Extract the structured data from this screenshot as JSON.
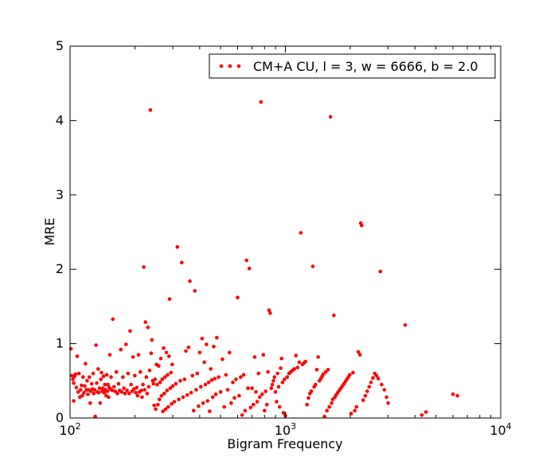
{
  "chart_data": {
    "type": "scatter",
    "xlabel": "Bigram Frequency",
    "ylabel": "MRE",
    "xscale": "log",
    "xlim": [
      100,
      10000
    ],
    "ylim": [
      0,
      5
    ],
    "xticks": [
      {
        "value": 100,
        "base": "10",
        "exp": "2"
      },
      {
        "value": 1000,
        "base": "10",
        "exp": "3"
      },
      {
        "value": 10000,
        "base": "10",
        "exp": "4"
      }
    ],
    "yticks": [
      0,
      1,
      2,
      3,
      4,
      5
    ],
    "grid": false,
    "legend_position": "top-right",
    "series": [
      {
        "name": "CM+A CU, l = 3, w = 6666, b = 2.0",
        "color": "#ff0000",
        "points": [
          [
            101,
            0.93
          ],
          [
            102,
            0.57
          ],
          [
            103,
            0.52
          ],
          [
            104,
            0.47
          ],
          [
            104,
            0.23
          ],
          [
            105,
            0.56
          ],
          [
            106,
            0.59
          ],
          [
            107,
            0.41
          ],
          [
            108,
            0.83
          ],
          [
            109,
            0.35
          ],
          [
            110,
            0.6
          ],
          [
            111,
            0.28
          ],
          [
            112,
            0.38
          ],
          [
            113,
            0.44
          ],
          [
            114,
            0.3
          ],
          [
            115,
            0.55
          ],
          [
            116,
            0.34
          ],
          [
            117,
            0.43
          ],
          [
            118,
            0.73
          ],
          [
            119,
            0.38
          ],
          [
            120,
            0.5
          ],
          [
            121,
            0.32
          ],
          [
            122,
            0.38
          ],
          [
            123,
            0.55
          ],
          [
            124,
            0.2
          ],
          [
            125,
            0.36
          ],
          [
            126,
            0.46
          ],
          [
            127,
            0.39
          ],
          [
            128,
            0.6
          ],
          [
            129,
            0.33
          ],
          [
            130,
            0.38
          ],
          [
            131,
            0.02
          ],
          [
            132,
            0.98
          ],
          [
            133,
            0.47
          ],
          [
            134,
            0.35
          ],
          [
            135,
            0.66
          ],
          [
            136,
            0.34
          ],
          [
            137,
            0.4
          ],
          [
            138,
            0.2
          ],
          [
            139,
            0.52
          ],
          [
            140,
            0.61
          ],
          [
            141,
            0.36
          ],
          [
            142,
            0.4
          ],
          [
            143,
            0.56
          ],
          [
            144,
            0.34
          ],
          [
            145,
            0.45
          ],
          [
            146,
            0.38
          ],
          [
            147,
            0.3
          ],
          [
            148,
            0.58
          ],
          [
            149,
            0.36
          ],
          [
            150,
            0.45
          ],
          [
            151,
            0.28
          ],
          [
            152,
            0.41
          ],
          [
            153,
            0.85
          ],
          [
            154,
            0.39
          ],
          [
            155,
            0.55
          ],
          [
            157,
            0.37
          ],
          [
            158,
            1.33
          ],
          [
            160,
            0.42
          ],
          [
            162,
            0.36
          ],
          [
            164,
            0.62
          ],
          [
            166,
            0.33
          ],
          [
            168,
            0.46
          ],
          [
            170,
            0.37
          ],
          [
            172,
            0.92
          ],
          [
            174,
            0.35
          ],
          [
            176,
            0.55
          ],
          [
            178,
            0.4
          ],
          [
            180,
            0.33
          ],
          [
            182,
            0.99
          ],
          [
            184,
            0.37
          ],
          [
            186,
            0.6
          ],
          [
            188,
            0.33
          ],
          [
            190,
            1.17
          ],
          [
            192,
            0.45
          ],
          [
            194,
            0.36
          ],
          [
            196,
            0.82
          ],
          [
            198,
            0.39
          ],
          [
            200,
            0.57
          ],
          [
            202,
            0.34
          ],
          [
            204,
            0.41
          ],
          [
            206,
            0.3
          ],
          [
            208,
            0.85
          ],
          [
            210,
            0.35
          ],
          [
            212,
            0.62
          ],
          [
            214,
            0.37
          ],
          [
            216,
            0.28
          ],
          [
            218,
            0.45
          ],
          [
            220,
            2.03
          ],
          [
            222,
            0.38
          ],
          [
            224,
            1.29
          ],
          [
            226,
            0.55
          ],
          [
            228,
            0.33
          ],
          [
            230,
            1.22
          ],
          [
            232,
            0.42
          ],
          [
            234,
            0.64
          ],
          [
            236,
            4.14
          ],
          [
            238,
            0.87
          ],
          [
            240,
            1.05
          ],
          [
            242,
            0.5
          ],
          [
            244,
            0.46
          ],
          [
            246,
            0.17
          ],
          [
            248,
            0.52
          ],
          [
            250,
            0.12
          ],
          [
            252,
            0.72
          ],
          [
            254,
            0.45
          ],
          [
            256,
            0.18
          ],
          [
            258,
            0.7
          ],
          [
            260,
            0.25
          ],
          [
            262,
            0.48
          ],
          [
            264,
            0.8
          ],
          [
            266,
            0.3
          ],
          [
            268,
            0.52
          ],
          [
            270,
            0.09
          ],
          [
            272,
            0.94
          ],
          [
            274,
            0.33
          ],
          [
            276,
            0.55
          ],
          [
            278,
            0.12
          ],
          [
            280,
            0.88
          ],
          [
            282,
            0.37
          ],
          [
            284,
            0.58
          ],
          [
            286,
            0.15
          ],
          [
            288,
            0.83
          ],
          [
            290,
            1.6
          ],
          [
            292,
            0.4
          ],
          [
            294,
            0.61
          ],
          [
            296,
            0.19
          ],
          [
            298,
            0.72
          ],
          [
            300,
            0.43
          ],
          [
            305,
            0.22
          ],
          [
            310,
            0.46
          ],
          [
            315,
            2.3
          ],
          [
            320,
            0.25
          ],
          [
            325,
            0.5
          ],
          [
            330,
            2.09
          ],
          [
            335,
            0.28
          ],
          [
            340,
            0.52
          ],
          [
            345,
            0.9
          ],
          [
            350,
            0.31
          ],
          [
            355,
            0.95
          ],
          [
            360,
            1.84
          ],
          [
            365,
            0.34
          ],
          [
            370,
            0.57
          ],
          [
            375,
            0.1
          ],
          [
            380,
            1.71
          ],
          [
            385,
            0.38
          ],
          [
            390,
            0.6
          ],
          [
            395,
            0.16
          ],
          [
            400,
            0.88
          ],
          [
            405,
            0.42
          ],
          [
            410,
            1.07
          ],
          [
            415,
            0.2
          ],
          [
            420,
            0.75
          ],
          [
            425,
            0.45
          ],
          [
            430,
            0.99
          ],
          [
            435,
            0.23
          ],
          [
            440,
            0.48
          ],
          [
            445,
            0.09
          ],
          [
            450,
            0.66
          ],
          [
            455,
            0.51
          ],
          [
            460,
            0.28
          ],
          [
            465,
            0.96
          ],
          [
            470,
            0.53
          ],
          [
            475,
            0.32
          ],
          [
            480,
            1.08
          ],
          [
            490,
            0.55
          ],
          [
            500,
            0.35
          ],
          [
            510,
            0.79
          ],
          [
            520,
            0.15
          ],
          [
            530,
            0.58
          ],
          [
            540,
            0.38
          ],
          [
            550,
            0.88
          ],
          [
            560,
            0.2
          ],
          [
            570,
            0.48
          ],
          [
            580,
            0.27
          ],
          [
            590,
            0.52
          ],
          [
            600,
            1.62
          ],
          [
            610,
            0.3
          ],
          [
            620,
            0.55
          ],
          [
            630,
            0.04
          ],
          [
            640,
            0.58
          ],
          [
            650,
            0.1
          ],
          [
            660,
            2.12
          ],
          [
            670,
            0.4
          ],
          [
            680,
            2.01
          ],
          [
            690,
            0.14
          ],
          [
            700,
            0.4
          ],
          [
            710,
            0.18
          ],
          [
            720,
            0.82
          ],
          [
            730,
            0.35
          ],
          [
            740,
            0.22
          ],
          [
            750,
            0.6
          ],
          [
            760,
            0.28
          ],
          [
            770,
            4.25
          ],
          [
            780,
            0.32
          ],
          [
            790,
            0.85
          ],
          [
            800,
            0.1
          ],
          [
            810,
            0.36
          ],
          [
            820,
            0.18
          ],
          [
            830,
            0.62
          ],
          [
            840,
            1.45
          ],
          [
            850,
            1.41
          ],
          [
            860,
            0.4
          ],
          [
            870,
            0.45
          ],
          [
            880,
            0.5
          ],
          [
            890,
            0.55
          ],
          [
            900,
            0.35
          ],
          [
            910,
            0.22
          ],
          [
            920,
            0.6
          ],
          [
            930,
            0.42
          ],
          [
            940,
            0.15
          ],
          [
            950,
            0.67
          ],
          [
            960,
            0.8
          ],
          [
            970,
            0.48
          ],
          [
            980,
            0.07
          ],
          [
            990,
            0.52
          ],
          [
            1000,
            0.03
          ],
          [
            1020,
            0.55
          ],
          [
            1040,
            0.6
          ],
          [
            1060,
            0.62
          ],
          [
            1080,
            0.64
          ],
          [
            1100,
            0.66
          ],
          [
            1120,
            0.84
          ],
          [
            1140,
            0.68
          ],
          [
            1160,
            0.75
          ],
          [
            1180,
            2.49
          ],
          [
            1200,
            0.72
          ],
          [
            1220,
            0.74
          ],
          [
            1240,
            0.76
          ],
          [
            1260,
            0.18
          ],
          [
            1280,
            0.27
          ],
          [
            1300,
            0.33
          ],
          [
            1320,
            0.36
          ],
          [
            1340,
            2.04
          ],
          [
            1360,
            0.42
          ],
          [
            1380,
            0.45
          ],
          [
            1400,
            0.65
          ],
          [
            1420,
            0.82
          ],
          [
            1440,
            0.5
          ],
          [
            1460,
            0.53
          ],
          [
            1480,
            0.56
          ],
          [
            1500,
            0.59
          ],
          [
            1520,
            0.02
          ],
          [
            1540,
            0.62
          ],
          [
            1560,
            0.1
          ],
          [
            1580,
            0.65
          ],
          [
            1600,
            0.15
          ],
          [
            1620,
            4.05
          ],
          [
            1640,
            0.2
          ],
          [
            1660,
            0.25
          ],
          [
            1680,
            1.38
          ],
          [
            1700,
            0.28
          ],
          [
            1720,
            0.31
          ],
          [
            1750,
            0.34
          ],
          [
            1780,
            0.37
          ],
          [
            1810,
            0.4
          ],
          [
            1840,
            0.43
          ],
          [
            1870,
            0.46
          ],
          [
            1900,
            0.49
          ],
          [
            1930,
            0.52
          ],
          [
            1960,
            0.55
          ],
          [
            1990,
            0.58
          ],
          [
            2020,
            0.06
          ],
          [
            2060,
            0.61
          ],
          [
            2100,
            0.1
          ],
          [
            2140,
            0.15
          ],
          [
            2180,
            0.89
          ],
          [
            2220,
            0.85
          ],
          [
            2240,
            2.62
          ],
          [
            2260,
            2.59
          ],
          [
            2300,
            0.24
          ],
          [
            2350,
            0.3
          ],
          [
            2400,
            0.36
          ],
          [
            2450,
            0.42
          ],
          [
            2500,
            0.48
          ],
          [
            2550,
            0.54
          ],
          [
            2600,
            0.6
          ],
          [
            2650,
            0.57
          ],
          [
            2700,
            0.53
          ],
          [
            2760,
            1.97
          ],
          [
            2800,
            0.45
          ],
          [
            2880,
            0.38
          ],
          [
            2950,
            0.28
          ],
          [
            3000,
            0.2
          ],
          [
            3600,
            1.25
          ],
          [
            4300,
            0.04
          ],
          [
            4500,
            0.08
          ],
          [
            6000,
            0.32
          ],
          [
            6300,
            0.3
          ]
        ]
      }
    ]
  }
}
